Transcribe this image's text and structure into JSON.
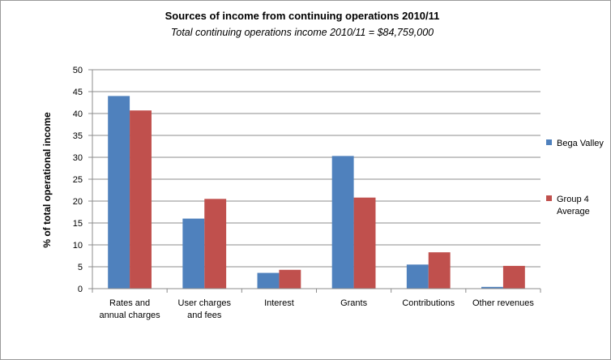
{
  "chart_data": {
    "type": "bar",
    "title": "Sources of income from continuing operations  2010/11",
    "subtitle": "Total continuing operations income 2010/11 = $84,759,000",
    "xlabel": "",
    "ylabel": "% of total operational income",
    "ylim": [
      0,
      50
    ],
    "yticks": [
      0,
      5,
      10,
      15,
      20,
      25,
      30,
      35,
      40,
      45,
      50
    ],
    "grid": true,
    "legend_position": "right",
    "categories": [
      [
        "Rates and",
        "annual charges"
      ],
      [
        "User charges",
        "and fees"
      ],
      [
        "Interest"
      ],
      [
        "Grants"
      ],
      [
        "Contributions"
      ],
      [
        "Other revenues"
      ]
    ],
    "series": [
      {
        "name": "Bega Valley",
        "legend_lines": [
          "Bega Valley"
        ],
        "color": "#4f81bd",
        "values": [
          44,
          16,
          3.6,
          30.3,
          5.5,
          0.4
        ]
      },
      {
        "name": "Group 4 Average",
        "legend_lines": [
          "Group 4",
          "Average"
        ],
        "color": "#c0504d",
        "values": [
          40.7,
          20.5,
          4.3,
          20.8,
          8.3,
          5.2
        ]
      }
    ]
  }
}
